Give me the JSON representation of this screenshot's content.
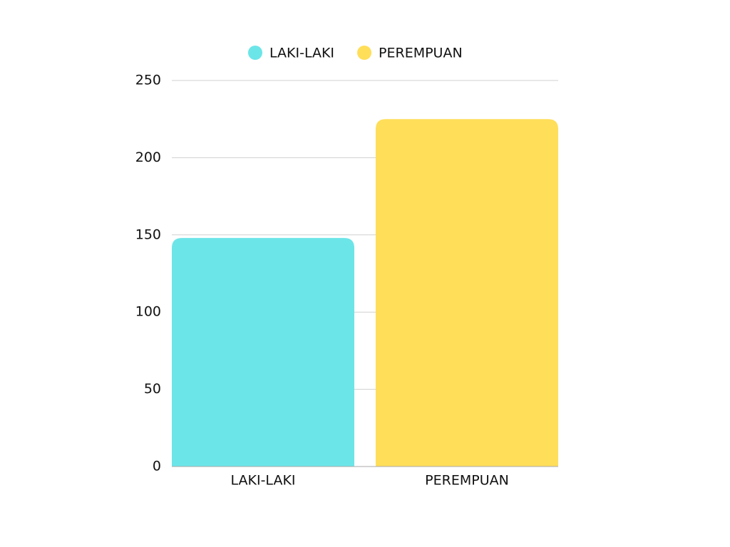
{
  "chart_data": {
    "type": "bar",
    "categories": [
      "LAKI-LAKI",
      "PEREMPUAN"
    ],
    "series": [
      {
        "name": "LAKI-LAKI",
        "color": "#6ce5e8",
        "values": [
          148,
          null
        ]
      },
      {
        "name": "PEREMPUAN",
        "color": "#ffde59",
        "values": [
          null,
          225
        ]
      }
    ],
    "ylim": [
      0,
      250
    ],
    "yticks": [
      0,
      50,
      100,
      150,
      200,
      250
    ],
    "grid": true,
    "legend": "top"
  }
}
